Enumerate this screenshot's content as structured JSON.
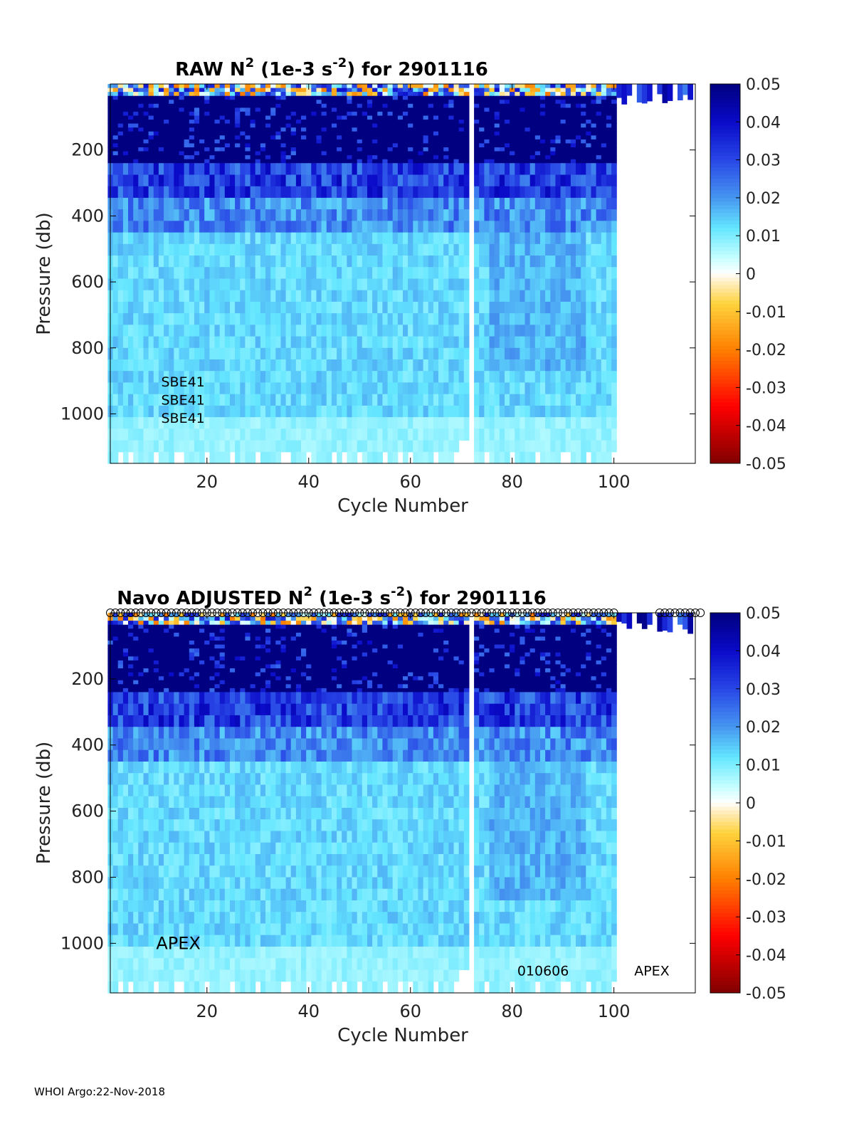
{
  "footer": "WHOI Argo:22-Nov-2018",
  "chart_data": [
    {
      "type": "heatmap",
      "title": "RAW N",
      "title_sup": "2",
      "title_mid": " (1e-3 s",
      "title_sup2": "-2",
      "title_end": ") for 2901116",
      "xlabel": "Cycle Number",
      "ylabel": "Pressure (db)",
      "xlim": [
        1,
        116
      ],
      "ylim": [
        1150,
        0
      ],
      "xticks": [
        20,
        40,
        60,
        80,
        100
      ],
      "yticks": [
        200,
        400,
        600,
        800,
        1000
      ],
      "colorbar_ticks": [
        "0.05",
        "0.04",
        "0.03",
        "0.02",
        "0.01",
        "0",
        "-0.01",
        "-0.02",
        "-0.03",
        "-0.04",
        "-0.05"
      ],
      "clim": [
        -0.05,
        0.05
      ],
      "colormap": "jet-like with white near 0",
      "annotations": [
        {
          "text": "SBE41",
          "x": 11,
          "y": 900
        },
        {
          "text": "SBE41",
          "x": 11,
          "y": 955
        },
        {
          "text": "SBE41",
          "x": 11,
          "y": 1010
        }
      ],
      "cycles_profiled": [
        1,
        100
      ],
      "gap_cycles": [
        72
      ],
      "pressure_layers": [
        {
          "p": [
            0,
            30
          ],
          "value": "mixed (positive/negative, near 0)"
        },
        {
          "p": [
            30,
            240
          ],
          "value": 0.05
        },
        {
          "p": [
            240,
            330
          ],
          "value": 0.03
        },
        {
          "p": [
            330,
            450
          ],
          "value": 0.02
        },
        {
          "p": [
            450,
            1000
          ],
          "value": 0.012
        },
        {
          "p": [
            1000,
            1150
          ],
          "value": 0.008
        }
      ],
      "marker_row": false
    },
    {
      "type": "heatmap",
      "title": "Navo  ADJUSTED N",
      "title_sup": "2",
      "title_mid": " (1e-3 s",
      "title_sup2": "-2",
      "title_end": ") for 2901116",
      "xlabel": "Cycle Number",
      "ylabel": "Pressure (db)",
      "xlim": [
        1,
        116
      ],
      "ylim": [
        1150,
        0
      ],
      "xticks": [
        20,
        40,
        60,
        80,
        100
      ],
      "yticks": [
        200,
        400,
        600,
        800,
        1000
      ],
      "colorbar_ticks": [
        "0.05",
        "0.04",
        "0.03",
        "0.02",
        "0.01",
        "0",
        "-0.01",
        "-0.02",
        "-0.03",
        "-0.04",
        "-0.05"
      ],
      "clim": [
        -0.05,
        0.05
      ],
      "colormap": "jet-like with white near 0",
      "annotations": [
        {
          "text": "APEX",
          "x": 10,
          "y": 1000
        },
        {
          "text": "010606",
          "x": 81,
          "y": 1080
        },
        {
          "text": "APEX",
          "x": 104,
          "y": 1080
        }
      ],
      "cycles_profiled": [
        1,
        100
      ],
      "gap_cycles": [
        72
      ],
      "pressure_layers": [
        {
          "p": [
            0,
            30
          ],
          "value": "mixed (positive/negative, near 0)"
        },
        {
          "p": [
            30,
            240
          ],
          "value": 0.05
        },
        {
          "p": [
            240,
            330
          ],
          "value": 0.03
        },
        {
          "p": [
            330,
            450
          ],
          "value": 0.02
        },
        {
          "p": [
            450,
            1000
          ],
          "value": 0.012
        },
        {
          "p": [
            1000,
            1150
          ],
          "value": 0.008
        }
      ],
      "marker_row": true
    }
  ]
}
